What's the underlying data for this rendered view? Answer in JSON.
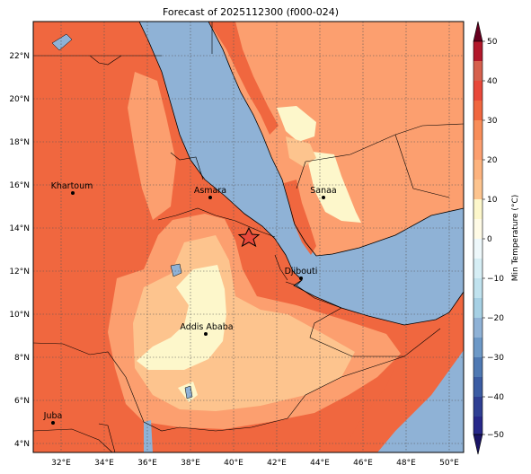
{
  "title": "Forecast of 2025112300 (f000-024)",
  "colorbar": {
    "label": "Min Temperature (°C)",
    "ticks": [
      "50",
      "40",
      "30",
      "20",
      "10",
      "0",
      "−10",
      "−20",
      "−30",
      "−40",
      "−50"
    ]
  },
  "axes": {
    "lat_labels": [
      "22°N",
      "20°N",
      "18°N",
      "16°N",
      "14°N",
      "12°N",
      "10°N",
      "8°N",
      "6°N",
      "4°N"
    ],
    "lon_labels": [
      "32°E",
      "34°E",
      "36°E",
      "38°E",
      "40°E",
      "42°E",
      "44°E",
      "46°E",
      "48°E",
      "50°E"
    ]
  },
  "cities": [
    {
      "name": "Khartoum"
    },
    {
      "name": "Asmara"
    },
    {
      "name": "Sanaa"
    },
    {
      "name": "Djibouti"
    },
    {
      "name": "Addis Ababa"
    },
    {
      "name": "Juba"
    }
  ],
  "colors": {
    "ocean": "#8fb2d6",
    "band_30_40": "#f0673f",
    "band_20_30": "#fc9f6f",
    "band_10_20": "#fdc48e",
    "band_0_10": "#fdf7cb",
    "star": "#e8483a"
  }
}
